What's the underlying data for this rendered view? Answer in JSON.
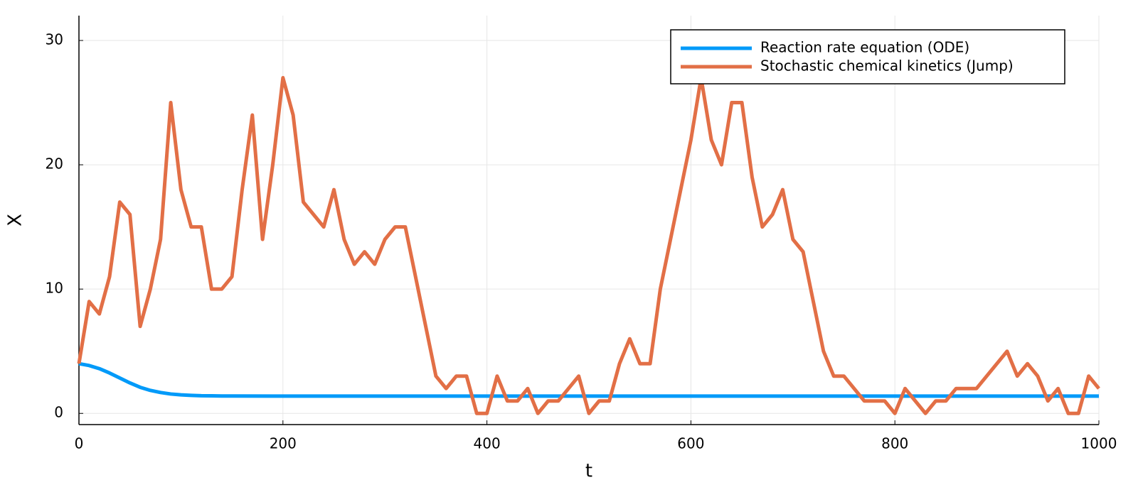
{
  "chart_data": {
    "type": "line",
    "xlabel": "t",
    "ylabel": "X",
    "xlim": [
      0,
      1000
    ],
    "ylim": [
      -0.9,
      32
    ],
    "xticks": [
      0,
      200,
      400,
      600,
      800,
      1000
    ],
    "yticks": [
      0,
      10,
      20,
      30
    ],
    "grid": true,
    "legend": "top-right",
    "series": [
      {
        "name": "Reaction rate equation (ODE)",
        "color": "#009af9",
        "x": [
          0,
          10,
          20,
          30,
          40,
          50,
          60,
          70,
          80,
          90,
          100,
          110,
          120,
          130,
          140,
          150,
          200,
          300,
          400,
          500,
          600,
          700,
          800,
          900,
          1000
        ],
        "values": [
          4,
          3.85,
          3.6,
          3.25,
          2.85,
          2.45,
          2.1,
          1.85,
          1.68,
          1.56,
          1.49,
          1.45,
          1.42,
          1.41,
          1.4,
          1.4,
          1.39,
          1.39,
          1.39,
          1.39,
          1.39,
          1.39,
          1.39,
          1.39,
          1.39
        ]
      },
      {
        "name": "Stochastic chemical kinetics (Jump)",
        "color": "#e26f46",
        "x": [
          0,
          10,
          20,
          30,
          40,
          50,
          60,
          70,
          80,
          90,
          100,
          110,
          120,
          130,
          140,
          150,
          160,
          170,
          180,
          190,
          200,
          210,
          220,
          230,
          240,
          250,
          260,
          270,
          280,
          290,
          300,
          310,
          320,
          330,
          340,
          350,
          360,
          370,
          380,
          390,
          400,
          410,
          420,
          430,
          440,
          450,
          460,
          470,
          480,
          490,
          500,
          510,
          520,
          530,
          540,
          550,
          560,
          570,
          580,
          590,
          600,
          610,
          620,
          630,
          640,
          650,
          660,
          670,
          680,
          690,
          700,
          710,
          720,
          730,
          740,
          750,
          760,
          770,
          780,
          790,
          800,
          810,
          820,
          830,
          840,
          850,
          860,
          870,
          880,
          890,
          900,
          910,
          920,
          930,
          940,
          950,
          960,
          970,
          980,
          990,
          1000
        ],
        "values": [
          4,
          9,
          8,
          11,
          17,
          16,
          7,
          10,
          14,
          25,
          18,
          15,
          15,
          10,
          10,
          11,
          18,
          24,
          14,
          20,
          27,
          24,
          17,
          16,
          15,
          18,
          14,
          12,
          13,
          12,
          14,
          15,
          15,
          11,
          7,
          3,
          2,
          3,
          3,
          0,
          0,
          3,
          1,
          1,
          2,
          0,
          1,
          1,
          2,
          3,
          0,
          1,
          1,
          4,
          6,
          4,
          4,
          10,
          14,
          18,
          22,
          27,
          22,
          20,
          25,
          25,
          19,
          15,
          16,
          18,
          14,
          13,
          9,
          5,
          3,
          3,
          2,
          1,
          1,
          1,
          0,
          2,
          1,
          0,
          1,
          1,
          2,
          2,
          2,
          3,
          4,
          5,
          3,
          4,
          3,
          1,
          2,
          0,
          0,
          3,
          2
        ]
      }
    ]
  }
}
